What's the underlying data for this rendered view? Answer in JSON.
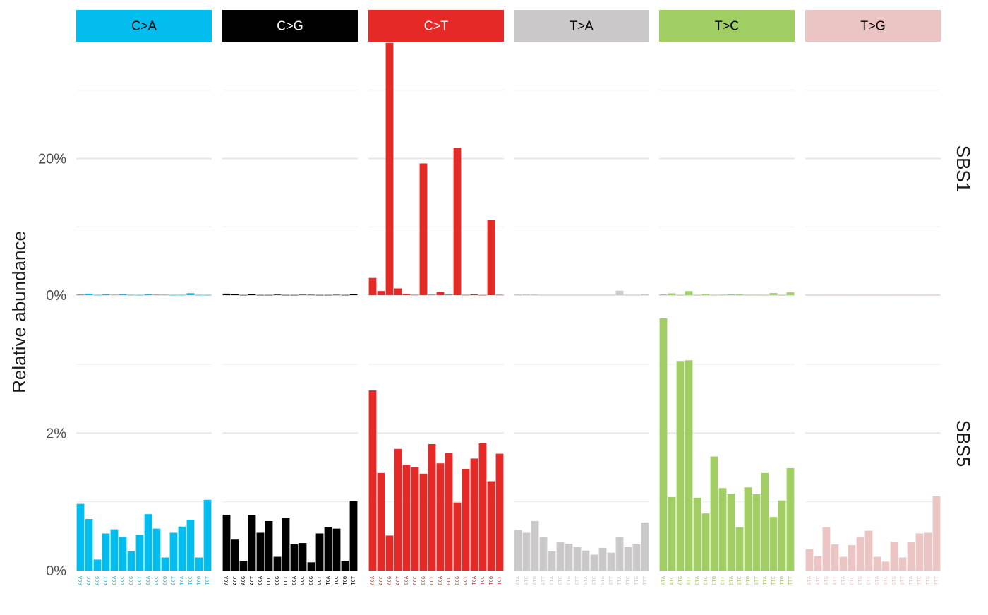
{
  "chart_data": {
    "type": "bar",
    "ylabel": "Relative abundance",
    "grid": true,
    "legend": "none",
    "mutation_types": [
      {
        "label": "C>A",
        "color": "#03bdee",
        "text_color": "#000000"
      },
      {
        "label": "C>G",
        "color": "#010101",
        "text_color": "#ffffff"
      },
      {
        "label": "C>T",
        "color": "#e52926",
        "text_color": "#ffffff"
      },
      {
        "label": "T>A",
        "color": "#cac8c9",
        "text_color": "#000000"
      },
      {
        "label": "T>C",
        "color": "#a1ce63",
        "text_color": "#000000"
      },
      {
        "label": "T>G",
        "color": "#ebc4c4",
        "text_color": "#000000"
      }
    ],
    "contexts": [
      [
        "ACA",
        "ACC",
        "ACG",
        "ACT",
        "CCA",
        "CCC",
        "CCG",
        "CCT",
        "GCA",
        "GCC",
        "GCG",
        "GCT",
        "TCA",
        "TCC",
        "TCG",
        "TCT"
      ],
      [
        "ACA",
        "ACC",
        "ACG",
        "ACT",
        "CCA",
        "CCC",
        "CCG",
        "CCT",
        "GCA",
        "GCC",
        "GCG",
        "GCT",
        "TCA",
        "TCC",
        "TCG",
        "TCT"
      ],
      [
        "ACA",
        "ACC",
        "ACG",
        "ACT",
        "CCA",
        "CCC",
        "CCG",
        "CCT",
        "GCA",
        "GCC",
        "GCG",
        "GCT",
        "TCA",
        "TCC",
        "TCG",
        "TCT"
      ],
      [
        "ATA",
        "ATC",
        "ATG",
        "ATT",
        "CTA",
        "CTC",
        "CTG",
        "CTT",
        "GTA",
        "GTC",
        "GTG",
        "GTT",
        "TTA",
        "TTC",
        "TTG",
        "TTT"
      ],
      [
        "ATA",
        "ATC",
        "ATG",
        "ATT",
        "CTA",
        "CTC",
        "CTG",
        "CTT",
        "GTA",
        "GTC",
        "GTG",
        "GTT",
        "TTA",
        "TTC",
        "TTG",
        "TTT"
      ],
      [
        "ATA",
        "ATC",
        "ATG",
        "ATT",
        "CTA",
        "CTC",
        "CTG",
        "CTT",
        "GTA",
        "GTC",
        "GTG",
        "GTT",
        "TTA",
        "TTC",
        "TTG",
        "TTT"
      ]
    ],
    "signatures": [
      {
        "name": "SBS1",
        "ylim": [
          0,
          37
        ],
        "major_ticks": [
          0,
          20
        ],
        "minor_ticks": [
          10,
          30
        ],
        "tick_labels": [
          "0%",
          "20%"
        ],
        "values": [
          [
            0.09,
            0.22,
            0.02,
            0.13,
            0.05,
            0.16,
            0.03,
            0.02,
            0.16,
            0.07,
            0.05,
            0.02,
            0.03,
            0.28,
            0.02,
            0.02
          ],
          [
            0.22,
            0.14,
            0.02,
            0.12,
            0.02,
            0.02,
            0.07,
            0.02,
            0.02,
            0.05,
            0.04,
            0.02,
            0.02,
            0.04,
            0.02,
            0.18
          ],
          [
            2.51,
            0.6,
            36.93,
            0.98,
            0.2,
            0.04,
            19.28,
            0.05,
            0.49,
            0.07,
            21.57,
            0.03,
            0.12,
            0.02,
            10.99,
            0.04
          ],
          [
            0.13,
            0.2,
            0.12,
            0.02,
            0.03,
            0.02,
            0.02,
            0.02,
            0.02,
            0.02,
            0.02,
            0.02,
            0.65,
            0.03,
            0.02,
            0.2
          ],
          [
            0.1,
            0.26,
            0.02,
            0.59,
            0.02,
            0.21,
            0.02,
            0.04,
            0.12,
            0.14,
            0.03,
            0.03,
            0.02,
            0.3,
            0.02,
            0.4
          ],
          [
            0.02,
            0.02,
            0.02,
            0.02,
            0.02,
            0.02,
            0.02,
            0.02,
            0.02,
            0.02,
            0.02,
            0.02,
            0.02,
            0.02,
            0.02,
            0.02
          ]
        ]
      },
      {
        "name": "SBS5",
        "ylim": [
          0,
          3.7
        ],
        "major_ticks": [
          0,
          2
        ],
        "minor_ticks": [
          1,
          3
        ],
        "tick_labels": [
          "0%",
          "2%"
        ],
        "values": [
          [
            0.97,
            0.75,
            0.16,
            0.54,
            0.6,
            0.49,
            0.28,
            0.52,
            0.82,
            0.61,
            0.19,
            0.55,
            0.64,
            0.74,
            0.19,
            1.03
          ],
          [
            0.81,
            0.45,
            0.14,
            0.81,
            0.55,
            0.72,
            0.2,
            0.76,
            0.38,
            0.4,
            0.12,
            0.54,
            0.63,
            0.61,
            0.14,
            1.01
          ],
          [
            2.62,
            1.42,
            0.51,
            1.77,
            1.54,
            1.5,
            1.41,
            1.84,
            1.56,
            1.71,
            0.99,
            1.48,
            1.63,
            1.85,
            1.3,
            1.7
          ],
          [
            0.59,
            0.55,
            0.72,
            0.49,
            0.28,
            0.41,
            0.39,
            0.34,
            0.29,
            0.23,
            0.33,
            0.26,
            0.49,
            0.34,
            0.38,
            0.7
          ],
          [
            3.67,
            1.07,
            3.05,
            3.06,
            1.06,
            0.83,
            1.66,
            1.2,
            1.12,
            0.63,
            1.21,
            1.11,
            1.42,
            0.78,
            1.02,
            1.49
          ],
          [
            0.31,
            0.21,
            0.63,
            0.38,
            0.2,
            0.37,
            0.49,
            0.58,
            0.2,
            0.13,
            0.42,
            0.19,
            0.41,
            0.54,
            0.55,
            1.08
          ]
        ]
      }
    ]
  }
}
